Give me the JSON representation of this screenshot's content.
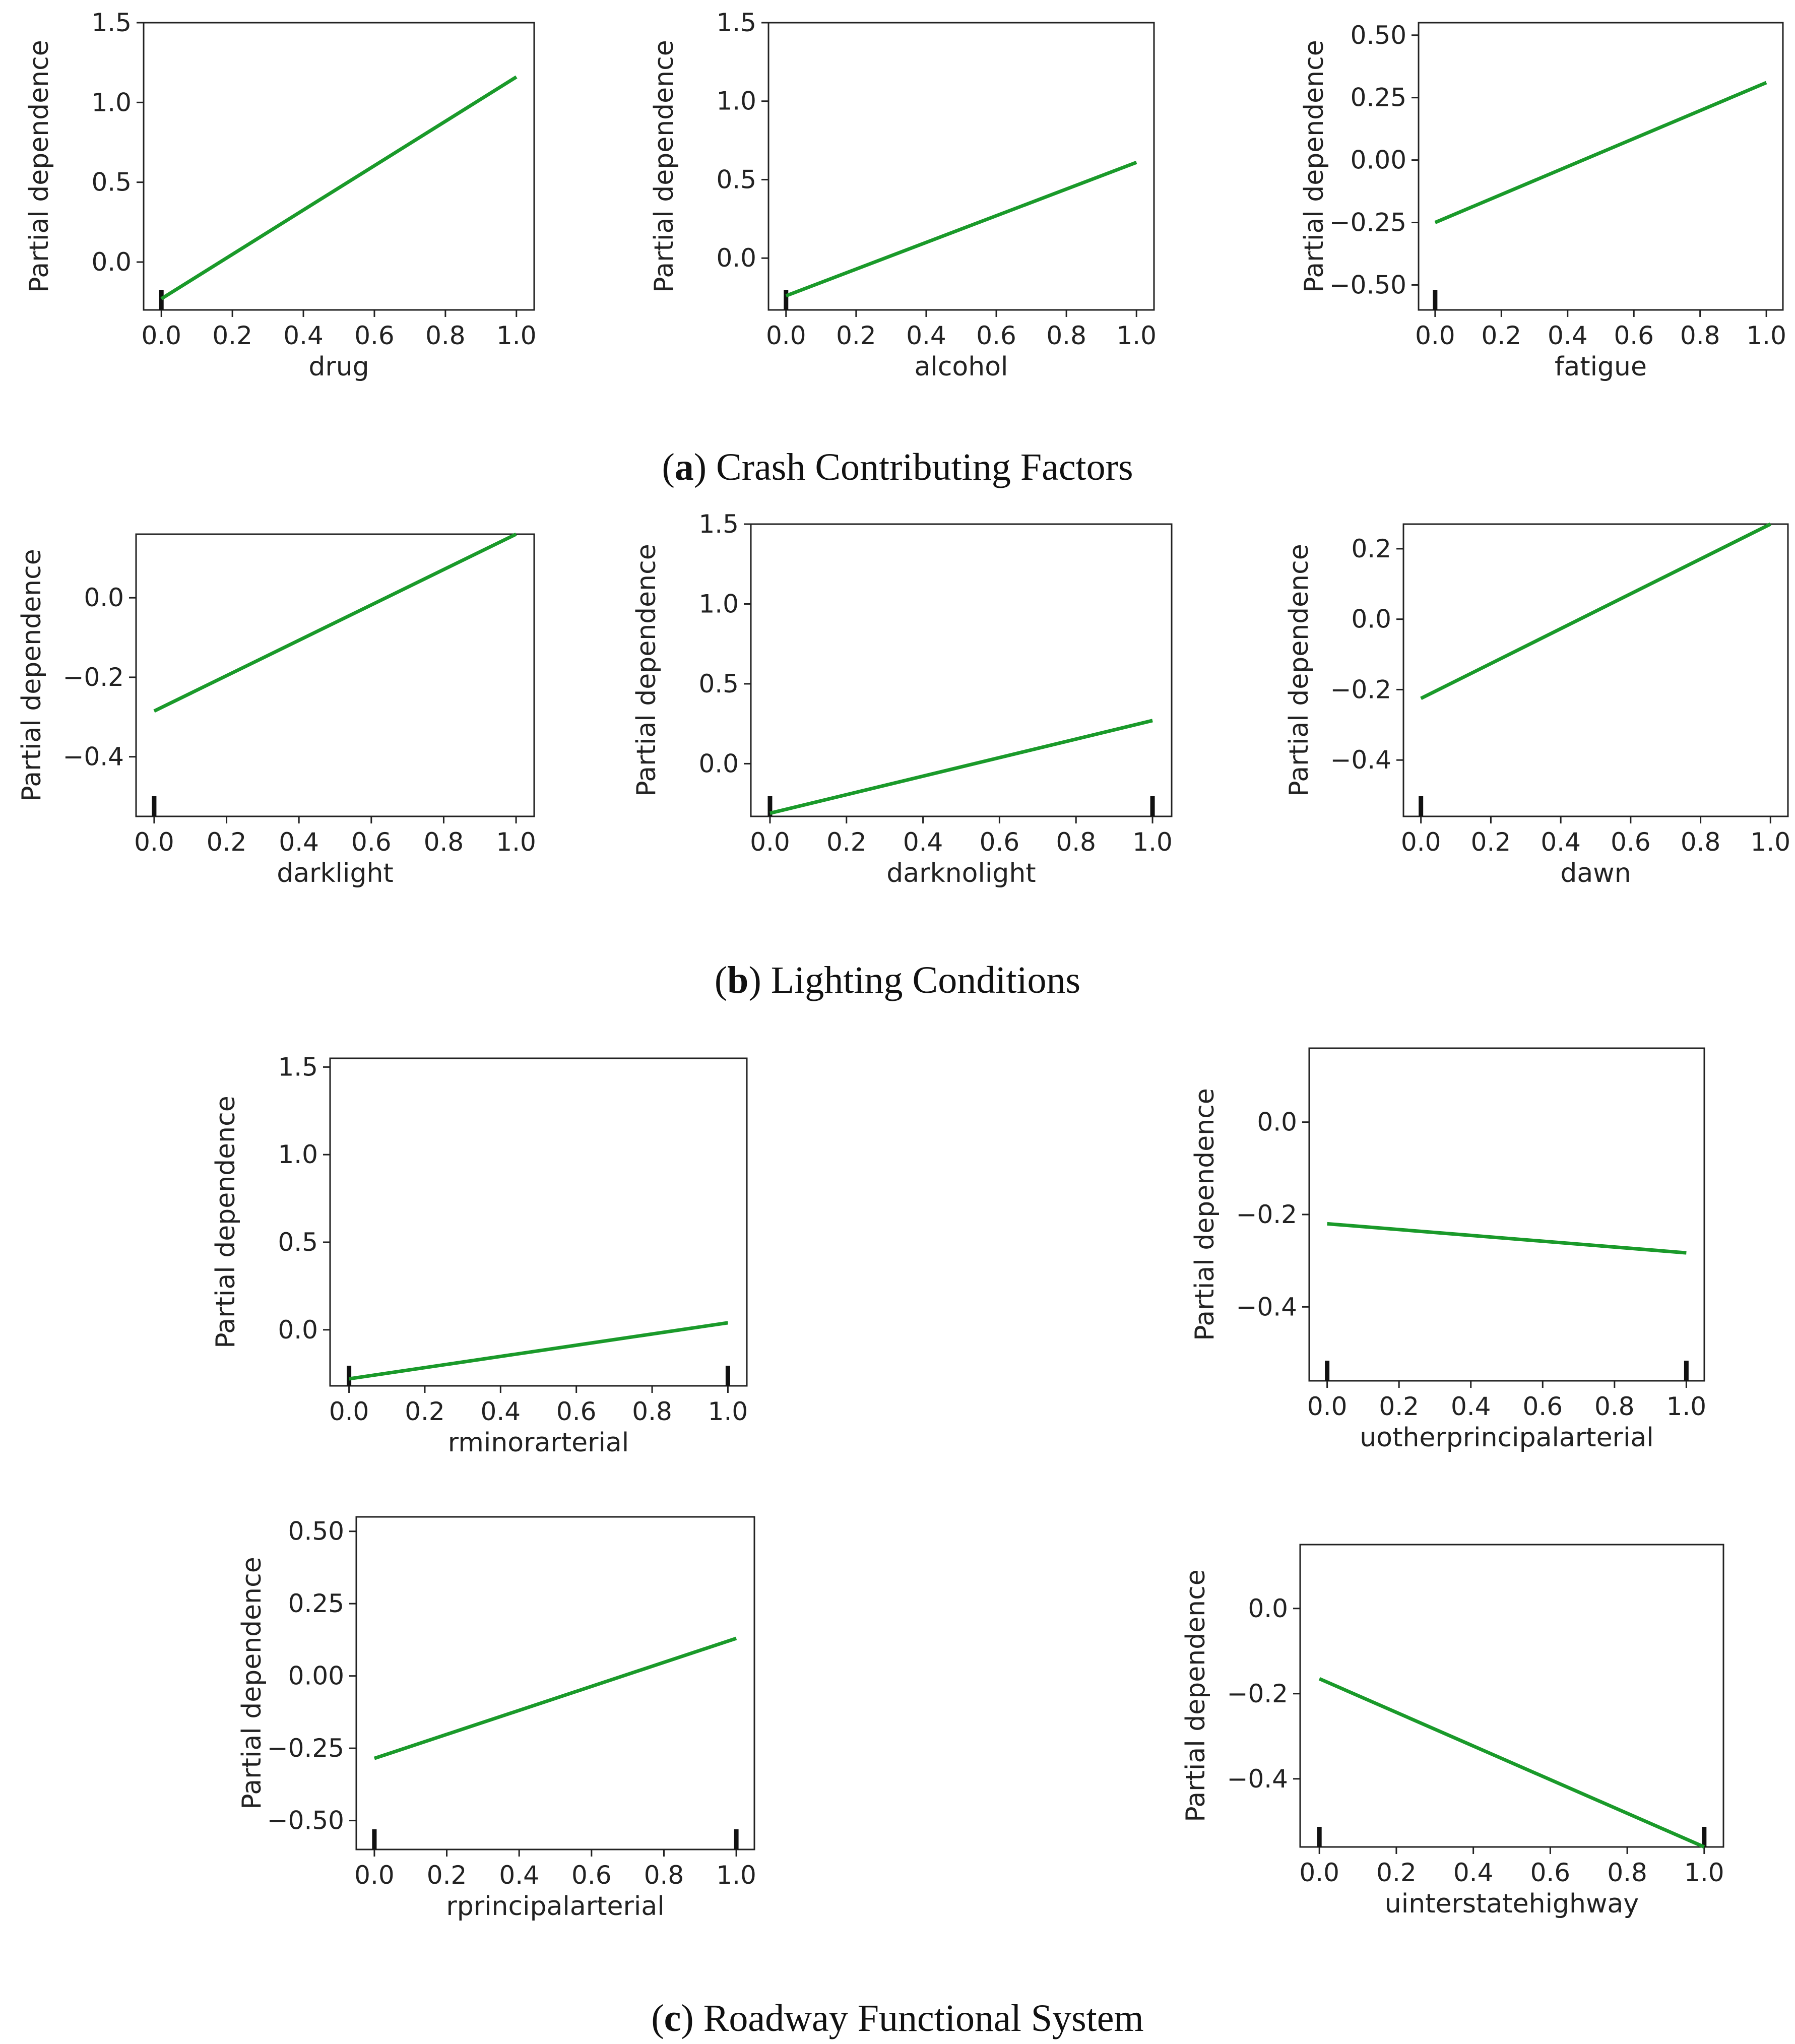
{
  "figure": {
    "captions": [
      {
        "prefix": "(",
        "letter": "a",
        "text": ") Crash Contributing Factors"
      },
      {
        "prefix": "(",
        "letter": "b",
        "text": ") Lighting Conditions"
      },
      {
        "prefix": "(",
        "letter": "c",
        "text": ") Roadway Functional System"
      }
    ]
  },
  "style": {
    "line_color": "#1a9a2a",
    "axis_color": "#222222"
  },
  "chart_data": [
    {
      "type": "line",
      "panel": "a-1",
      "title": "",
      "xlabel": "drug",
      "ylabel": "Partial dependence",
      "x": [
        0,
        1
      ],
      "y": [
        -0.23,
        1.16
      ],
      "xlim": [
        -0.05,
        1.05
      ],
      "ylim": [
        -0.3,
        1.5
      ],
      "xticks": [
        "0.0",
        "0.2",
        "0.4",
        "0.6",
        "0.8",
        "1.0"
      ],
      "yticks": [
        "0.0",
        "0.5",
        "1.0",
        "1.5"
      ],
      "ytick_values": [
        0,
        0.5,
        1.0,
        1.5
      ],
      "rug": [
        0
      ]
    },
    {
      "type": "line",
      "panel": "a-2",
      "title": "",
      "xlabel": "alcohol",
      "ylabel": "Partial dependence",
      "x": [
        0,
        1
      ],
      "y": [
        -0.24,
        0.61
      ],
      "xlim": [
        -0.05,
        1.05
      ],
      "ylim": [
        -0.33,
        1.5
      ],
      "xticks": [
        "0.0",
        "0.2",
        "0.4",
        "0.6",
        "0.8",
        "1.0"
      ],
      "yticks": [
        "0.0",
        "0.5",
        "1.0",
        "1.5"
      ],
      "ytick_values": [
        0,
        0.5,
        1.0,
        1.5
      ],
      "rug": [
        0
      ]
    },
    {
      "type": "line",
      "panel": "a-3",
      "title": "",
      "xlabel": "fatigue",
      "ylabel": "Partial dependence",
      "x": [
        0,
        1
      ],
      "y": [
        -0.25,
        0.31
      ],
      "xlim": [
        -0.05,
        1.05
      ],
      "ylim": [
        -0.6,
        0.55
      ],
      "xticks": [
        "0.0",
        "0.2",
        "0.4",
        "0.6",
        "0.8",
        "1.0"
      ],
      "yticks": [
        "−0.50",
        "−0.25",
        "0.00",
        "0.25",
        "0.50"
      ],
      "ytick_values": [
        -0.5,
        -0.25,
        0,
        0.25,
        0.5
      ],
      "rug": [
        0
      ]
    },
    {
      "type": "line",
      "panel": "b-1",
      "title": "",
      "xlabel": "darklight",
      "ylabel": "Partial dependence",
      "x": [
        0,
        1
      ],
      "y": [
        -0.285,
        0.16
      ],
      "xlim": [
        -0.05,
        1.05
      ],
      "ylim": [
        -0.55,
        0.16
      ],
      "xticks": [
        "0.0",
        "0.2",
        "0.4",
        "0.6",
        "0.8",
        "1.0"
      ],
      "yticks": [
        "−0.4",
        "−0.2",
        "0.0"
      ],
      "ytick_values": [
        -0.4,
        -0.2,
        0
      ],
      "rug": [
        0
      ]
    },
    {
      "type": "line",
      "panel": "b-2",
      "title": "",
      "xlabel": "darknolight",
      "ylabel": "Partial dependence",
      "x": [
        0,
        1
      ],
      "y": [
        -0.31,
        0.27
      ],
      "xlim": [
        -0.05,
        1.05
      ],
      "ylim": [
        -0.33,
        1.5
      ],
      "xticks": [
        "0.0",
        "0.2",
        "0.4",
        "0.6",
        "0.8",
        "1.0"
      ],
      "yticks": [
        "0.0",
        "0.5",
        "1.0",
        "1.5"
      ],
      "ytick_values": [
        0,
        0.5,
        1.0,
        1.5
      ],
      "rug": [
        0,
        1
      ]
    },
    {
      "type": "line",
      "panel": "b-3",
      "title": "",
      "xlabel": "dawn",
      "ylabel": "Partial dependence",
      "x": [
        0,
        1
      ],
      "y": [
        -0.225,
        0.27
      ],
      "xlim": [
        -0.05,
        1.05
      ],
      "ylim": [
        -0.56,
        0.27
      ],
      "xticks": [
        "0.0",
        "0.2",
        "0.4",
        "0.6",
        "0.8",
        "1.0"
      ],
      "yticks": [
        "−0.4",
        "−0.2",
        "0.0",
        "0.2"
      ],
      "ytick_values": [
        -0.4,
        -0.2,
        0,
        0.2
      ],
      "rug": [
        0
      ]
    },
    {
      "type": "line",
      "panel": "c-1",
      "title": "",
      "xlabel": "rminorarterial",
      "ylabel": "Partial dependence",
      "x": [
        0,
        1
      ],
      "y": [
        -0.28,
        0.04
      ],
      "xlim": [
        -0.05,
        1.05
      ],
      "ylim": [
        -0.32,
        1.55
      ],
      "xticks": [
        "0.0",
        "0.2",
        "0.4",
        "0.6",
        "0.8",
        "1.0"
      ],
      "yticks": [
        "0.0",
        "0.5",
        "1.0",
        "1.5"
      ],
      "ytick_values": [
        0,
        0.5,
        1.0,
        1.5
      ],
      "rug": [
        0,
        1
      ]
    },
    {
      "type": "line",
      "panel": "c-2",
      "title": "",
      "xlabel": "uotherprincipalarterial",
      "ylabel": "Partial dependence",
      "x": [
        0,
        1
      ],
      "y": [
        -0.22,
        -0.283
      ],
      "xlim": [
        -0.05,
        1.05
      ],
      "ylim": [
        -0.56,
        0.16
      ],
      "xticks": [
        "0.0",
        "0.2",
        "0.4",
        "0.6",
        "0.8",
        "1.0"
      ],
      "yticks": [
        "−0.4",
        "−0.2",
        "0.0"
      ],
      "ytick_values": [
        -0.4,
        -0.2,
        0
      ],
      "rug": [
        0,
        1
      ]
    },
    {
      "type": "line",
      "panel": "c-3",
      "title": "",
      "xlabel": "rprincipalarterial",
      "ylabel": "Partial dependence",
      "x": [
        0,
        1
      ],
      "y": [
        -0.285,
        0.13
      ],
      "xlim": [
        -0.05,
        1.05
      ],
      "ylim": [
        -0.6,
        0.55
      ],
      "xticks": [
        "0.0",
        "0.2",
        "0.4",
        "0.6",
        "0.8",
        "1.0"
      ],
      "yticks": [
        "−0.50",
        "−0.25",
        "0.00",
        "0.25",
        "0.50"
      ],
      "ytick_values": [
        -0.5,
        -0.25,
        0,
        0.25,
        0.5
      ],
      "rug": [
        0,
        1
      ]
    },
    {
      "type": "line",
      "panel": "c-4",
      "title": "",
      "xlabel": "uinterstatehighway",
      "ylabel": "Partial dependence",
      "x": [
        0,
        1
      ],
      "y": [
        -0.165,
        -0.56
      ],
      "xlim": [
        -0.05,
        1.05
      ],
      "ylim": [
        -0.56,
        0.15
      ],
      "xticks": [
        "0.0",
        "0.2",
        "0.4",
        "0.6",
        "0.8",
        "1.0"
      ],
      "yticks": [
        "−0.4",
        "−0.2",
        "0.0"
      ],
      "ytick_values": [
        -0.4,
        -0.2,
        0
      ],
      "rug": [
        0,
        1
      ]
    }
  ]
}
